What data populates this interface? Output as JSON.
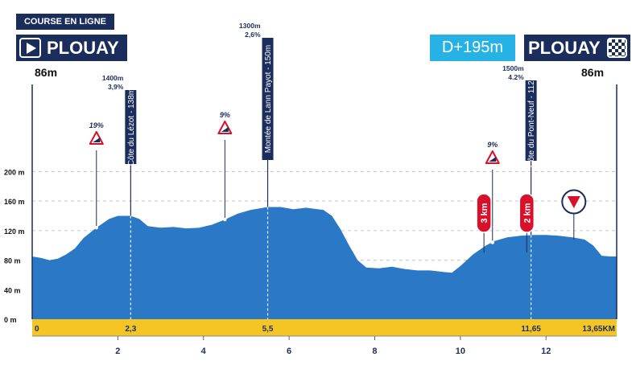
{
  "header": {
    "race_type": "COURSE EN LIGNE",
    "start_city": "PLOUAY",
    "end_city": "PLOUAY",
    "start_altitude": "86m",
    "end_altitude": "86m",
    "elevation_gain": "D+195m"
  },
  "colors": {
    "navy": "#1b2d5b",
    "profile": "#2a78c6",
    "shadow": "#1d3a7a",
    "sky": "#27b2e6",
    "road": "#f5c623",
    "warning_red": "#d8102a"
  },
  "chart_data": {
    "type": "area",
    "x_ticks": [
      2,
      4,
      6,
      8,
      10,
      12
    ],
    "y_ticks": [
      {
        "value": 0,
        "label": "0 m"
      },
      {
        "value": 40,
        "label": "40 m"
      },
      {
        "value": 80,
        "label": "80 m"
      },
      {
        "value": 120,
        "label": "120 m"
      },
      {
        "value": 160,
        "label": "160 m"
      },
      {
        "value": 200,
        "label": "200 m"
      }
    ],
    "distance_marks": [
      {
        "km": 0,
        "label": "0"
      },
      {
        "km": 2.3,
        "label": "2,3"
      },
      {
        "km": 5.5,
        "label": "5,5"
      },
      {
        "km": 11.65,
        "label": "11,65"
      },
      {
        "km": 13.65,
        "label": "13,65KM"
      }
    ],
    "xlim": [
      0,
      13.65
    ],
    "ylim": [
      0,
      230
    ],
    "profile": [
      [
        0,
        85
      ],
      [
        0.2,
        83
      ],
      [
        0.4,
        80
      ],
      [
        0.6,
        82
      ],
      [
        0.8,
        88
      ],
      [
        1.0,
        96
      ],
      [
        1.2,
        110
      ],
      [
        1.5,
        124
      ],
      [
        1.8,
        136
      ],
      [
        2.0,
        140
      ],
      [
        2.3,
        140
      ],
      [
        2.5,
        136
      ],
      [
        2.7,
        126
      ],
      [
        3.0,
        124
      ],
      [
        3.3,
        125
      ],
      [
        3.6,
        123
      ],
      [
        3.9,
        124
      ],
      [
        4.2,
        128
      ],
      [
        4.5,
        135
      ],
      [
        4.8,
        143
      ],
      [
        5.1,
        148
      ],
      [
        5.5,
        152
      ],
      [
        5.8,
        152
      ],
      [
        6.1,
        149
      ],
      [
        6.4,
        151
      ],
      [
        6.8,
        148
      ],
      [
        7.0,
        140
      ],
      [
        7.2,
        122
      ],
      [
        7.4,
        100
      ],
      [
        7.6,
        80
      ],
      [
        7.8,
        70
      ],
      [
        8.1,
        69
      ],
      [
        8.4,
        71
      ],
      [
        8.7,
        68
      ],
      [
        9.0,
        66
      ],
      [
        9.3,
        66
      ],
      [
        9.6,
        64
      ],
      [
        9.8,
        63
      ],
      [
        10.0,
        72
      ],
      [
        10.3,
        88
      ],
      [
        10.6,
        100
      ],
      [
        10.8,
        106
      ],
      [
        11.1,
        111
      ],
      [
        11.4,
        113
      ],
      [
        11.7,
        114
      ],
      [
        12.0,
        114
      ],
      [
        12.3,
        113
      ],
      [
        12.6,
        111
      ],
      [
        12.9,
        108
      ],
      [
        13.1,
        100
      ],
      [
        13.3,
        86
      ],
      [
        13.5,
        85
      ],
      [
        13.65,
        85
      ]
    ],
    "climbs": [
      {
        "name": "Côte du Lézot - 138m",
        "km": 2.3,
        "top_value": 140,
        "length": "1400m",
        "grade": "3,9%"
      },
      {
        "name": "Montée de Lann Payot - 150m",
        "km": 5.5,
        "top_value": 152,
        "length": "1300m",
        "grade": "2,6%"
      },
      {
        "name": "Côte du Pont-Neuf - 112m",
        "km": 11.65,
        "top_value": 114,
        "length": "1500m",
        "grade": "4.2%"
      }
    ],
    "steep_signs": [
      {
        "km": 1.5,
        "value": 124,
        "label": "19%"
      },
      {
        "km": 4.5,
        "value": 135,
        "label": "9%"
      },
      {
        "km": 10.75,
        "value": 104,
        "label": "9%"
      }
    ],
    "km_markers": [
      {
        "km": 10.55,
        "label": "3 km"
      },
      {
        "km": 11.55,
        "label": "2 km"
      }
    ],
    "flamme_rouge_km": 12.65
  }
}
